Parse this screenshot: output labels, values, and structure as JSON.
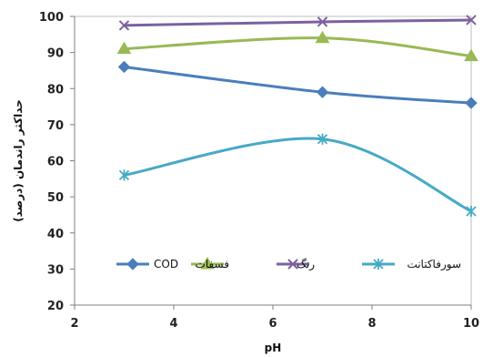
{
  "chart_data": {
    "type": "line",
    "xlabel": "pH",
    "ylabel": "حداکثر راندمان (درصد)",
    "xlim": [
      2,
      10
    ],
    "ylim": [
      20,
      100
    ],
    "xticks": [
      "2",
      "4",
      "6",
      "8",
      "10"
    ],
    "yticks": [
      "20",
      "30",
      "40",
      "50",
      "60",
      "70",
      "80",
      "90",
      "100"
    ],
    "grid": false,
    "legend_position": "inside-bottom",
    "series": [
      {
        "name": "COD",
        "x": [
          3,
          7,
          10
        ],
        "values": [
          86,
          79,
          76
        ],
        "color": "#4A7EBB",
        "marker": "diamond"
      },
      {
        "name": "فسفات",
        "x": [
          3,
          7,
          10
        ],
        "values": [
          91,
          94,
          89
        ],
        "color": "#98B954",
        "marker": "triangle"
      },
      {
        "name": "رنگ",
        "x": [
          3,
          7,
          10
        ],
        "values": [
          97.5,
          98.5,
          99
        ],
        "color": "#7D60A0",
        "marker": "x"
      },
      {
        "name": "سورفاکتانت",
        "x": [
          3,
          7,
          10
        ],
        "values": [
          56,
          66,
          46
        ],
        "color": "#46AAC5",
        "marker": "star"
      }
    ]
  }
}
